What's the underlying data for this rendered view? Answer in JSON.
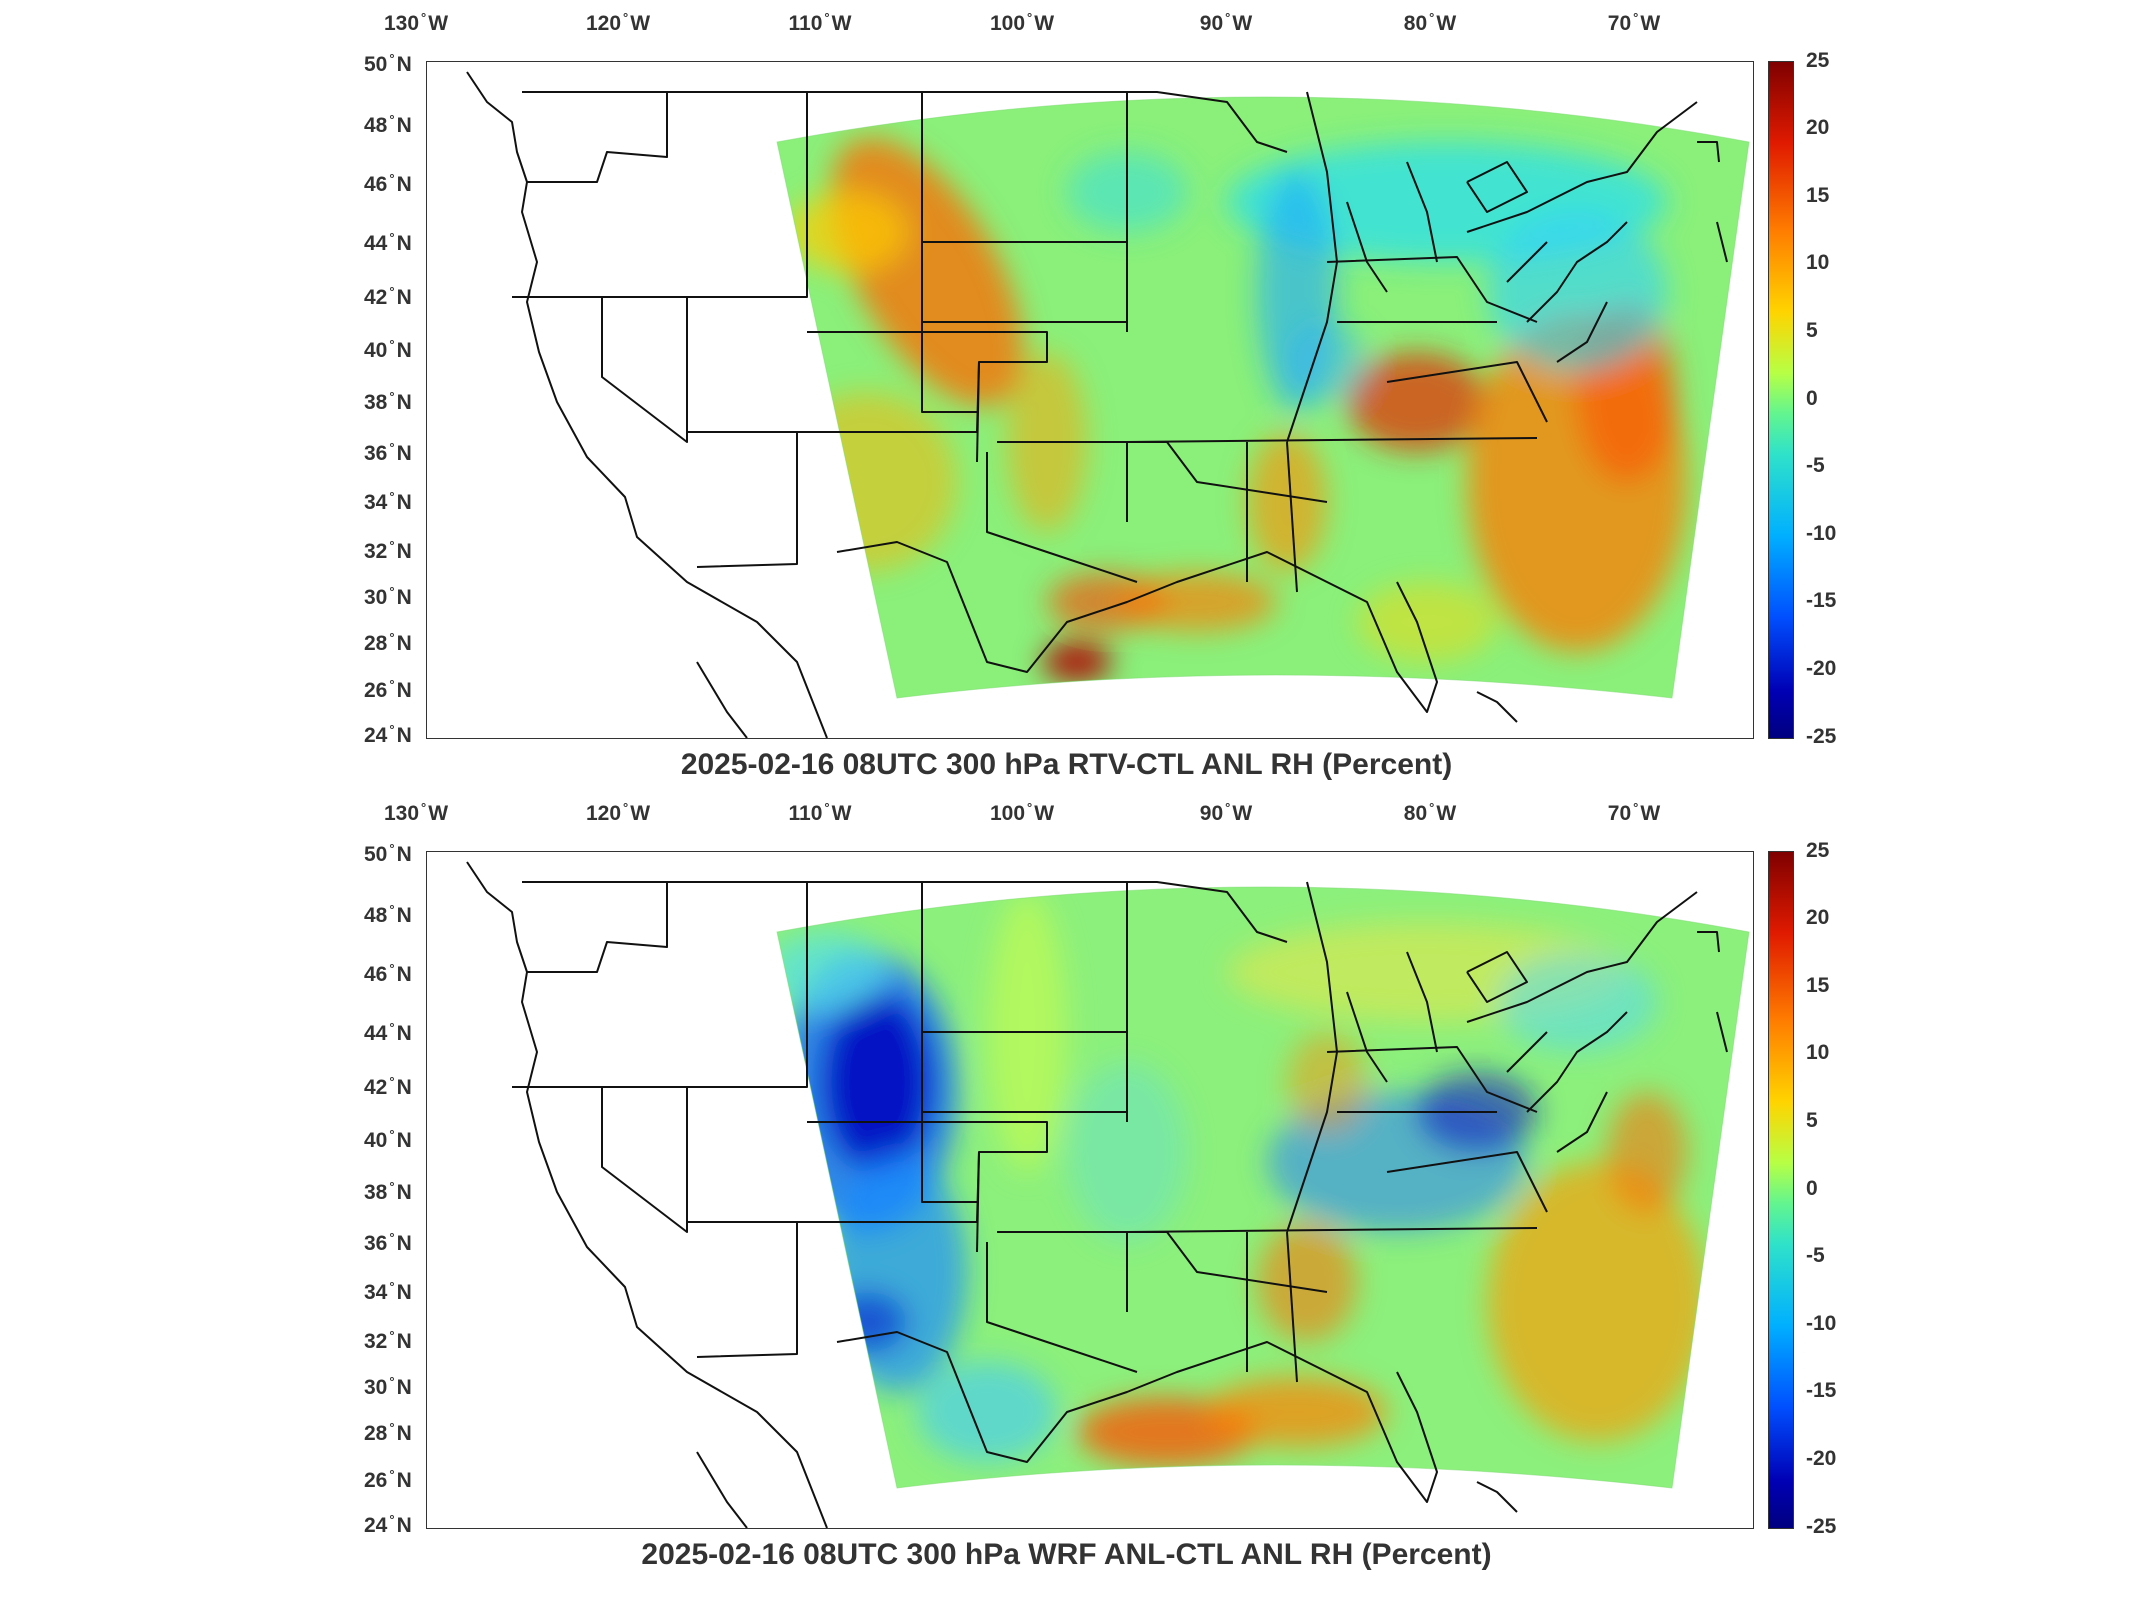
{
  "lon_labels": [
    {
      "deg": "130",
      "dir": "W"
    },
    {
      "deg": "120",
      "dir": "W"
    },
    {
      "deg": "110",
      "dir": "W"
    },
    {
      "deg": "100",
      "dir": "W"
    },
    {
      "deg": "90",
      "dir": "W"
    },
    {
      "deg": "80",
      "dir": "W"
    },
    {
      "deg": "70",
      "dir": "W"
    }
  ],
  "lat_labels": [
    {
      "deg": "50",
      "dir": "N"
    },
    {
      "deg": "48",
      "dir": "N"
    },
    {
      "deg": "46",
      "dir": "N"
    },
    {
      "deg": "44",
      "dir": "N"
    },
    {
      "deg": "42",
      "dir": "N"
    },
    {
      "deg": "40",
      "dir": "N"
    },
    {
      "deg": "38",
      "dir": "N"
    },
    {
      "deg": "36",
      "dir": "N"
    },
    {
      "deg": "34",
      "dir": "N"
    },
    {
      "deg": "32",
      "dir": "N"
    },
    {
      "deg": "30",
      "dir": "N"
    },
    {
      "deg": "28",
      "dir": "N"
    },
    {
      "deg": "26",
      "dir": "N"
    },
    {
      "deg": "24",
      "dir": "N"
    }
  ],
  "colorbar_ticks": [
    "25",
    "20",
    "15",
    "10",
    "5",
    "0",
    "-5",
    "-10",
    "-15",
    "-20",
    "-25"
  ],
  "colorbar_range": [
    -25,
    25
  ],
  "colormap": "jet",
  "panels": [
    {
      "title": "2025-02-16 08UTC 300 hPa RTV-CTL ANL RH (Percent)",
      "pattern": "rtv"
    },
    {
      "title": "2025-02-16 08UTC 300 hPa WRF ANL-CTL ANL RH (Percent)",
      "pattern": "wrf"
    }
  ]
}
